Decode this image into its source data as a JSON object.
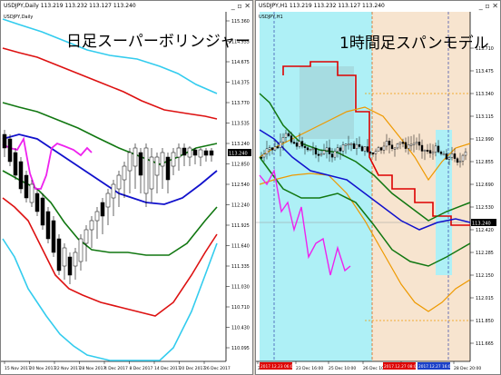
{
  "left": {
    "window_title": "USDJPY,Daily 113.219 113.232 113.127 113.240",
    "overlay_title": "日足スーパーボリンジャー",
    "symbol_label": "USDJPY,Daily",
    "price_current": "113.240",
    "y_ticks": [
      "115.360",
      "114.955",
      "114.675",
      "114.375",
      "113.770",
      "113.535",
      "113.240",
      "112.850",
      "112.540",
      "112.240",
      "111.925",
      "111.640",
      "111.335",
      "111.030",
      "110.710",
      "110.430",
      "110.095"
    ],
    "x_ticks": [
      "15 Nov 2017",
      "20 Nov 2017",
      "22 Nov 2017",
      "28 Nov 2017",
      "4 Dec 2017",
      "8 Dec 2017",
      "14 Dec 2017",
      "20 Dec 2017",
      "26 Dec 2017"
    ]
  },
  "right": {
    "window_title": "USDJPY,H1 113.219 113.232 113.127 113.240",
    "overlay_title": "1時間足スパンモデル",
    "symbol_label": "USDJPY,H1",
    "price_current": "113.240",
    "y_ticks": [
      "113.710",
      "113.475",
      "113.340",
      "113.115",
      "112.990",
      "112.855",
      "112.690",
      "112.530",
      "112.420",
      "112.285",
      "112.150",
      "112.015",
      "111.850",
      "111.665"
    ],
    "x_ticks": [
      "22 Dec 2017",
      "23 Dec 16:00",
      "25 Dec 10:00",
      "26 Dec 10:00",
      "27 Dec",
      "28 Dec 20:00"
    ],
    "highlight_labels": [
      "2017.12.23 06:00",
      "2017.12.27 08:00",
      "2017.12.27 16:00"
    ]
  },
  "colors": {
    "upper3": "#33ccee",
    "upper2": "#dd1111",
    "upper1": "#117711",
    "middle": "#1111cc",
    "lag": "#ee22ee",
    "span_cyan": "#aef0f6",
    "span_peach": "#f7e4cf",
    "orange": "#ee9900",
    "highlight_red": "#dd0000",
    "highlight_blue": "#1a40c8"
  }
}
